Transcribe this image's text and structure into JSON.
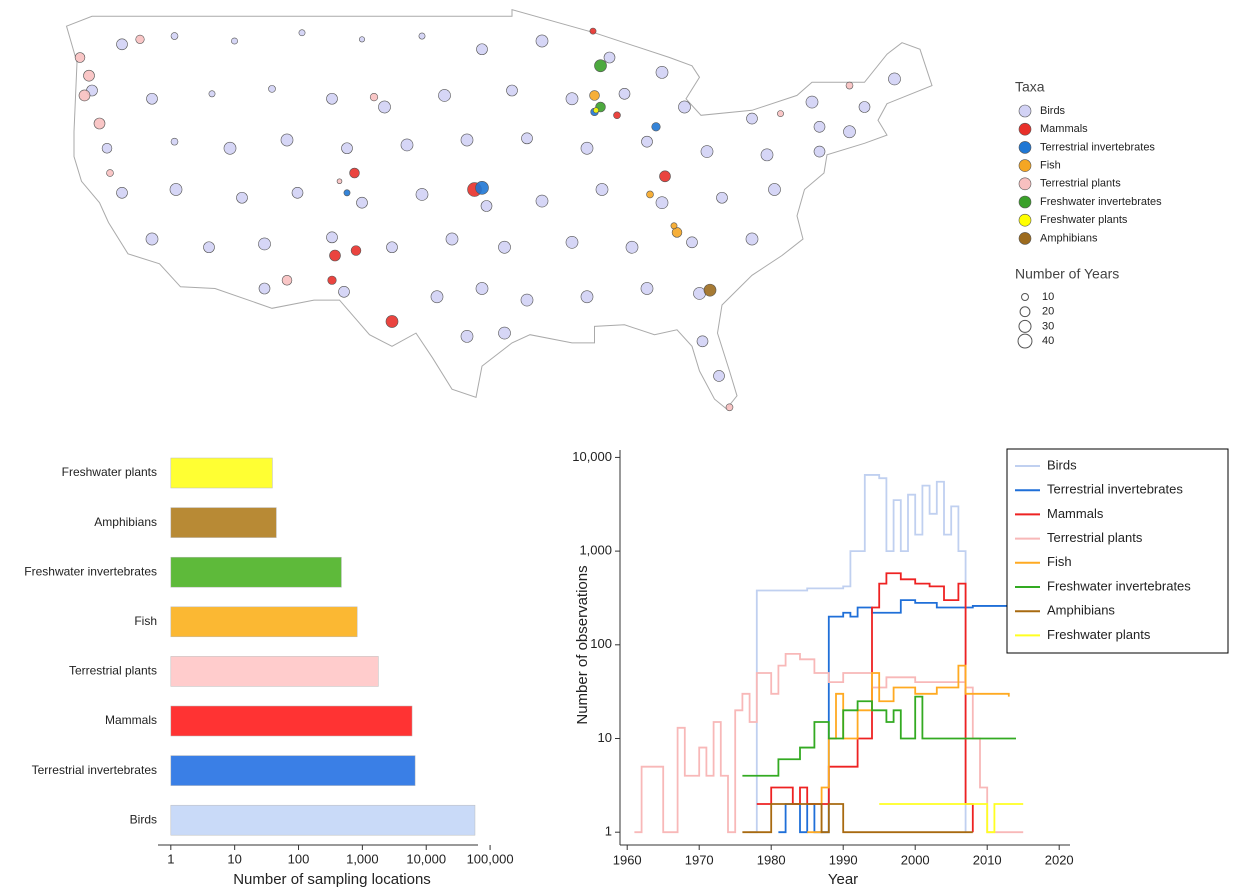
{
  "chart_data": [
    {
      "type": "map",
      "legend_title": "Taxa",
      "series": [
        {
          "name": "Birds",
          "color": "#d2d2f5",
          "lon": [
            -121,
            -117.5,
            -113.5,
            -109,
            -105,
            -101,
            -97,
            -93,
            -88.5,
            -85,
            -69.5,
            -123,
            -119,
            -115,
            -111,
            -107,
            -103.5,
            -99.5,
            -95,
            -91,
            -87.5,
            -83.5,
            -79,
            -75,
            -71.5,
            -122,
            -117.5,
            -113.8,
            -110,
            -106,
            -102,
            -98,
            -94,
            -90,
            -86,
            -82,
            -78,
            -74.5,
            -121,
            -117.4,
            -113,
            -109.3,
            -105,
            -101,
            -96.7,
            -93,
            -89,
            -85,
            -81,
            -77.5,
            -119,
            -115.2,
            -111.5,
            -107,
            -103,
            -99,
            -95.5,
            -91,
            -87,
            -83,
            -79,
            -111.5,
            -106.2,
            -100,
            -97,
            -94,
            -90,
            -86,
            -82.5,
            -98,
            -95.5,
            -82.3,
            -81.2,
            -74.5,
            -72.5
          ],
          "lat": [
            47.3,
            47.8,
            47.5,
            48,
            47.6,
            47.8,
            47,
            47.5,
            46.5,
            45.6,
            45.2,
            44.5,
            44,
            44.3,
            44.6,
            44,
            43.5,
            44.2,
            44.5,
            44,
            44.3,
            43.5,
            42.8,
            43.8,
            43.5,
            41,
            41.4,
            41,
            41.5,
            41,
            41.2,
            41.5,
            41.6,
            41,
            41.4,
            40.8,
            40.6,
            40.8,
            38.3,
            38.5,
            38,
            38.3,
            37.7,
            38.2,
            37.5,
            37.8,
            38.5,
            37.7,
            38,
            38.5,
            35.5,
            35,
            35.2,
            35.6,
            35,
            35.5,
            35,
            35.3,
            35,
            35.3,
            35.5,
            32.5,
            32.3,
            32,
            32.5,
            31.8,
            32,
            32.5,
            32.2,
            29.6,
            29.8,
            29.3,
            27.2,
            42.3,
            42
          ],
          "years": [
            25,
            10,
            8,
            8,
            6,
            8,
            25,
            30,
            25,
            30,
            30,
            25,
            25,
            8,
            10,
            25,
            30,
            30,
            25,
            30,
            25,
            30,
            25,
            30,
            25,
            20,
            10,
            30,
            30,
            25,
            30,
            30,
            25,
            30,
            25,
            30,
            30,
            25,
            25,
            30,
            25,
            25,
            25,
            30,
            25,
            30,
            30,
            30,
            25,
            30,
            30,
            25,
            30,
            25,
            25,
            30,
            30,
            30,
            30,
            25,
            30,
            25,
            25,
            30,
            30,
            30,
            30,
            30,
            30,
            30,
            30,
            25,
            25,
            25,
            30
          ]
        },
        {
          "name": "Mammals",
          "color": "#e8302a",
          "lon": [
            -97.5,
            -105.5,
            -106.8,
            -107,
            -103,
            -84.8,
            -88,
            -105.4,
            -89.6
          ],
          "lat": [
            38.5,
            39.5,
            34.5,
            33,
            30.5,
            39.3,
            43,
            34.8,
            48.1
          ],
          "years": [
            40,
            20,
            25,
            15,
            30,
            25,
            10,
            20,
            8
          ]
        },
        {
          "name": "Terrestrial invertebrates",
          "color": "#1f77d4",
          "lon": [
            -97,
            -89.5,
            -85.4,
            -106
          ],
          "lat": [
            38.6,
            43.2,
            42.3,
            38.3
          ],
          "years": [
            35,
            12,
            15,
            8
          ]
        },
        {
          "name": "Fish",
          "color": "#f5a623",
          "lon": [
            -89.5,
            -84,
            -85.8,
            -84.2
          ],
          "lat": [
            44.2,
            35.9,
            38.2,
            36.3
          ],
          "years": [
            20,
            20,
            10,
            8
          ]
        },
        {
          "name": "Terrestrial plants",
          "color": "#f8c0c0",
          "lon": [
            -123.8,
            -123.2,
            -123.5,
            -122.5,
            -121.8,
            -119.8,
            -106.5,
            -110,
            -80.5,
            -72.5,
            -77.1,
            -104.2
          ],
          "lat": [
            46.5,
            45.4,
            44.2,
            42.5,
            39.5,
            47.6,
            39,
            33,
            25.3,
            44.8,
            43.1,
            44.1
          ],
          "years": [
            20,
            25,
            25,
            25,
            10,
            15,
            5,
            20,
            10,
            10,
            8,
            12
          ]
        },
        {
          "name": "Freshwater invertebrates",
          "color": "#3aa02a",
          "lon": [
            -89.1,
            -89.1
          ],
          "lat": [
            46,
            43.5
          ],
          "years": [
            30,
            20
          ]
        },
        {
          "name": "Freshwater plants",
          "color": "#ffff00",
          "lon": [
            -89.4
          ],
          "lat": [
            43.3
          ],
          "years": [
            6
          ]
        },
        {
          "name": "Amphibians",
          "color": "#9c6b1e",
          "lon": [
            -81.8
          ],
          "lat": [
            32.4
          ],
          "years": [
            30
          ]
        }
      ],
      "size_legend": {
        "title": "Number of Years",
        "values": [
          10,
          20,
          30,
          40
        ]
      }
    },
    {
      "type": "bar",
      "orientation": "horizontal",
      "xscale": "log",
      "categories": [
        "Freshwater plants",
        "Amphibians",
        "Freshwater invertebrates",
        "Fish",
        "Terrestrial plants",
        "Mammals",
        "Terrestrial invertebrates",
        "Birds"
      ],
      "values": [
        39,
        45,
        470,
        830,
        1780,
        6000,
        6700,
        58000
      ],
      "colors": [
        "#ffff33",
        "#b88a35",
        "#5eba3a",
        "#fbb833",
        "#ffcccc",
        "#ff3333",
        "#3a7fe6",
        "#c9daf8"
      ],
      "xlim": [
        0.63,
        143000
      ],
      "xticks": [
        1,
        10,
        100,
        {
          "value": 1000,
          "label": "1,000"
        },
        {
          "value": 10000,
          "label": "10,000"
        },
        {
          "value": 100000,
          "label": "100,000"
        }
      ],
      "xlabel": "Number of sampling locations"
    },
    {
      "type": "line",
      "step": true,
      "yscale": "log",
      "legend": "upper right",
      "xlabel": "Year",
      "ylabel": "Number of observations",
      "xlim": [
        1959,
        2021.5
      ],
      "xticks": [
        1960,
        1970,
        1980,
        1990,
        2000,
        2010,
        2020
      ],
      "ylim": [
        0.73,
        12000
      ],
      "yticks": [
        1,
        10,
        100,
        {
          "value": 1000,
          "label": "1,000"
        },
        {
          "value": 10000,
          "label": "10,000"
        }
      ],
      "series": [
        {
          "name": "Birds",
          "color": "#c0d0f0",
          "x": [
            1977,
            1978,
            1985,
            1990,
            1991,
            1993,
            1995,
            1996,
            1997,
            1998,
            1999,
            2000,
            2001,
            2002,
            2003,
            2004,
            2005,
            2006,
            2007
          ],
          "values": [
            1,
            380,
            400,
            420,
            1000,
            6500,
            6000,
            1000,
            3500,
            1000,
            4000,
            1500,
            5000,
            2500,
            5500,
            1500,
            3000,
            1000,
            1
          ]
        },
        {
          "name": "Terrestrial invertebrates",
          "color": "#1f6fd8",
          "x": [
            1981,
            1982,
            1984,
            1985,
            1986,
            1988,
            1990,
            1991,
            1992,
            1994,
            1998,
            2000,
            2003,
            2008,
            2014
          ],
          "values": [
            1,
            2,
            1,
            2,
            1,
            200,
            220,
            200,
            250,
            220,
            300,
            280,
            250,
            260,
            250
          ]
        },
        {
          "name": "Mammals",
          "color": "#ee2222",
          "x": [
            1978,
            1980,
            1983,
            1984,
            1985,
            1988,
            1992,
            1994,
            1995,
            1996,
            1998,
            2000,
            2002,
            2004,
            2006,
            2007,
            2008
          ],
          "values": [
            2,
            3,
            2,
            3,
            2,
            5,
            10,
            250,
            450,
            580,
            500,
            450,
            420,
            300,
            450,
            2,
            1
          ]
        },
        {
          "name": "Terrestrial plants",
          "color": "#f8b8b8",
          "x": [
            1961,
            1962,
            1965,
            1967,
            1968,
            1970,
            1971,
            1972,
            1973,
            1974,
            1975,
            1976,
            1977,
            1978,
            1980,
            1981,
            1982,
            1984,
            1986,
            1988,
            1990,
            1994,
            1996,
            2000,
            2004,
            2007,
            2008,
            2009,
            2010,
            2015
          ],
          "values": [
            1,
            5,
            1,
            13,
            4,
            8,
            4,
            15,
            4,
            1,
            20,
            30,
            15,
            50,
            30,
            60,
            80,
            70,
            50,
            40,
            50,
            35,
            45,
            40,
            40,
            35,
            10,
            3,
            1,
            1
          ]
        },
        {
          "name": "Fish",
          "color": "#ffaa22",
          "x": [
            1985,
            1987,
            1988,
            1989,
            1990,
            1992,
            1994,
            1995,
            1997,
            2000,
            2003,
            2006,
            2007,
            2013
          ],
          "values": [
            1,
            3,
            10,
            30,
            10,
            20,
            50,
            25,
            35,
            30,
            35,
            60,
            30,
            28
          ]
        },
        {
          "name": "Freshwater invertebrates",
          "color": "#33aa22",
          "x": [
            1976,
            1981,
            1984,
            1986,
            1988,
            1990,
            1992,
            1994,
            1996,
            1997,
            1998,
            2000,
            2001,
            2007,
            2014
          ],
          "values": [
            4,
            6,
            8,
            15,
            10,
            20,
            25,
            20,
            15,
            20,
            10,
            28,
            10,
            10,
            10
          ]
        },
        {
          "name": "Amphibians",
          "color": "#a86a10",
          "x": [
            1976,
            1980,
            1987,
            1988,
            1990,
            2008
          ],
          "values": [
            1,
            2,
            1,
            2,
            1,
            1
          ]
        },
        {
          "name": "Freshwater plants",
          "color": "#ffff22",
          "x": [
            1995,
            2010,
            2011,
            2015
          ],
          "values": [
            2,
            1,
            2,
            2
          ]
        }
      ]
    }
  ]
}
